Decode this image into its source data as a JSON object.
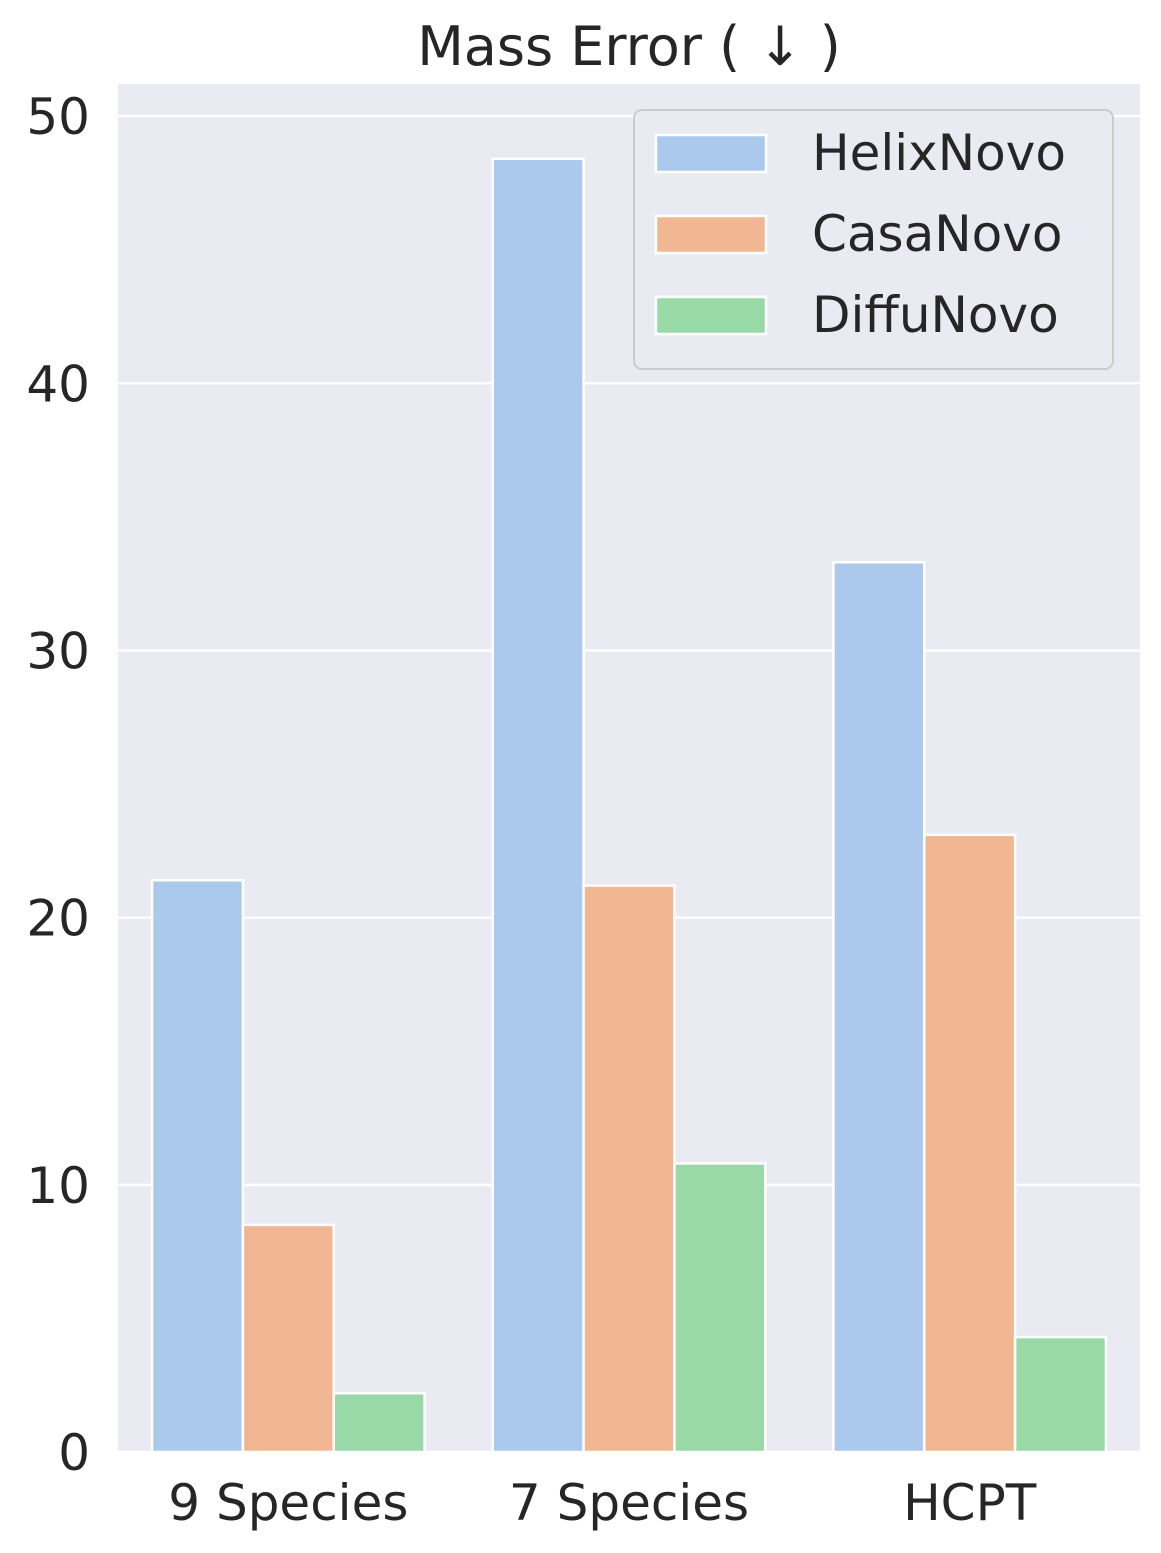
{
  "chart_data": {
    "type": "bar",
    "title": "Mass Error ( ↓ )",
    "xlabel": "",
    "ylabel": "",
    "categories": [
      "9 Species",
      "7 Species",
      "HCPT"
    ],
    "series": [
      {
        "name": "HelixNovo",
        "values": [
          21.4,
          48.4,
          33.3
        ],
        "color": "#abc9ec"
      },
      {
        "name": "CasaNovo",
        "values": [
          8.5,
          21.2,
          23.1
        ],
        "color": "#f0b792"
      },
      {
        "name": "DiffuNovo",
        "values": [
          2.2,
          10.8,
          4.3
        ],
        "color": "#99d9a8"
      }
    ],
    "ylim": [
      0,
      51.2
    ],
    "yticks": [
      0,
      10,
      20,
      30,
      40,
      50
    ],
    "grid": true,
    "legend_position": "top-right",
    "background_color": "#eaeaf2",
    "grid_color": "#ffffff",
    "text_color": "#262626"
  }
}
